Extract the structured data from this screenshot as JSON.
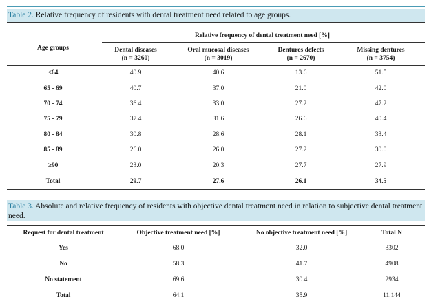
{
  "table2": {
    "caption_label": "Table 2.",
    "caption_text": " Relative frequency of residents with dental treatment need related to age groups.",
    "group_header": "Relative frequency of dental treatment need [%]",
    "row_header": "Age groups",
    "columns": [
      {
        "name": "Dental diseases",
        "n": "(n = 3260)"
      },
      {
        "name": "Oral mucosal diseases",
        "n": "(n = 3019)"
      },
      {
        "name": "Dentures defects",
        "n": "(n = 2670)"
      },
      {
        "name": "Missing dentures",
        "n": "(n = 3754)"
      }
    ],
    "rows": [
      {
        "label": "≤64",
        "values": [
          "40.9",
          "40.6",
          "13.6",
          "51.5"
        ]
      },
      {
        "label": "65 - 69",
        "values": [
          "40.7",
          "37.0",
          "21.0",
          "42.0"
        ]
      },
      {
        "label": "70 - 74",
        "values": [
          "36.4",
          "33.0",
          "27.2",
          "47.2"
        ]
      },
      {
        "label": "75 - 79",
        "values": [
          "37.4",
          "31.6",
          "26.6",
          "40.4"
        ]
      },
      {
        "label": "80 - 84",
        "values": [
          "30.8",
          "28.6",
          "28.1",
          "33.4"
        ]
      },
      {
        "label": "85 - 89",
        "values": [
          "26.0",
          "26.0",
          "27.2",
          "30.0"
        ]
      },
      {
        "label": "≥90",
        "values": [
          "23.0",
          "20.3",
          "27.7",
          "27.9"
        ]
      },
      {
        "label": "Total",
        "values": [
          "29.7",
          "27.6",
          "26.1",
          "34.5"
        ]
      }
    ]
  },
  "table3": {
    "caption_label": "Table 3.",
    "caption_text": " Absolute and relative frequency of residents with objective dental treatment need in relation to subjective dental treatment need.",
    "headers": [
      "Request for dental treatment",
      "Objective treatment need [%]",
      "No objective treatment need [%]",
      "Total N"
    ],
    "rows": [
      {
        "label": "Yes",
        "values": [
          "68.0",
          "32.0",
          "3302"
        ]
      },
      {
        "label": "No",
        "values": [
          "58.3",
          "41.7",
          "4908"
        ]
      },
      {
        "label": "No statement",
        "values": [
          "69.6",
          "30.4",
          "2934"
        ]
      },
      {
        "label": "Total",
        "values": [
          "64.1",
          "35.9",
          "11,144"
        ]
      }
    ]
  }
}
